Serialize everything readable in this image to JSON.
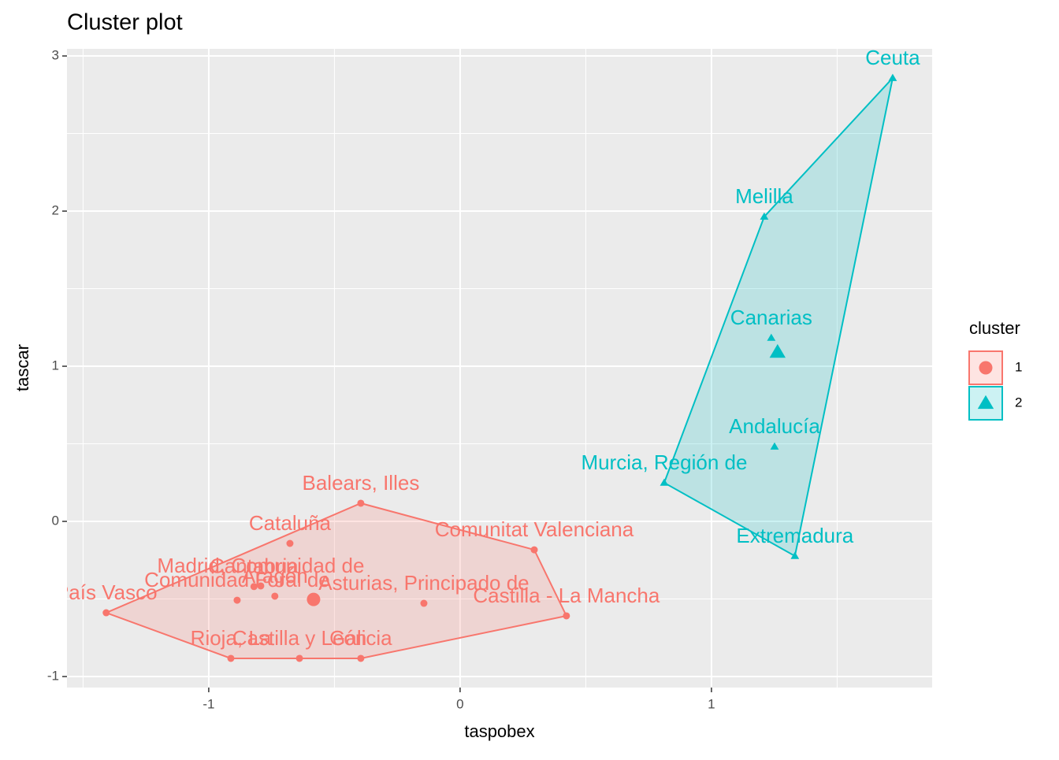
{
  "chart_data": {
    "type": "scatter",
    "title": "Cluster plot",
    "x_label": "taspobex",
    "y_label": "tascar",
    "xlim": [
      -1.564,
      1.878
    ],
    "ylim": [
      -1.071,
      3.046
    ],
    "xticks": [
      -1,
      0,
      1
    ],
    "yticks": [
      -1,
      0,
      1,
      2,
      3
    ],
    "grid": true,
    "legend_title": "cluster",
    "legend_position": "right",
    "series": [
      {
        "name": "1",
        "color": "#f8766d",
        "marker": "circle",
        "labels": [
          "Balears, Illes",
          "Cataluña",
          "Comunitat Valenciana",
          "Castilla - La Mancha",
          "Asturias, Principado de",
          "Madrid, Comunidad de",
          "Aragón",
          "Cantabria",
          "Comunidad Foral de",
          "País Vasco",
          "Rioja, La",
          "Castilla y León",
          "Galicia"
        ],
        "x": [
          -0.395,
          -0.677,
          0.295,
          0.423,
          -0.144,
          -0.793,
          -0.737,
          -0.82,
          -0.887,
          -1.408,
          -0.912,
          -0.639,
          -0.395
        ],
        "y": [
          0.117,
          -0.142,
          -0.183,
          -0.609,
          -0.528,
          -0.416,
          -0.482,
          -0.42,
          -0.508,
          -0.589,
          -0.883,
          -0.883,
          -0.883
        ],
        "center": [
          -0.583,
          -0.503
        ]
      },
      {
        "name": "2",
        "color": "#00bfc4",
        "marker": "triangle",
        "labels": [
          "Ceuta",
          "Melilla",
          "Canarias",
          "Andalucía",
          "Murcia, Región de",
          "Extremadura"
        ],
        "x": [
          1.721,
          1.21,
          1.238,
          1.251,
          0.812,
          1.332
        ],
        "y": [
          2.858,
          1.964,
          1.183,
          0.482,
          0.249,
          -0.223
        ],
        "center": [
          1.263,
          1.091
        ]
      }
    ]
  }
}
